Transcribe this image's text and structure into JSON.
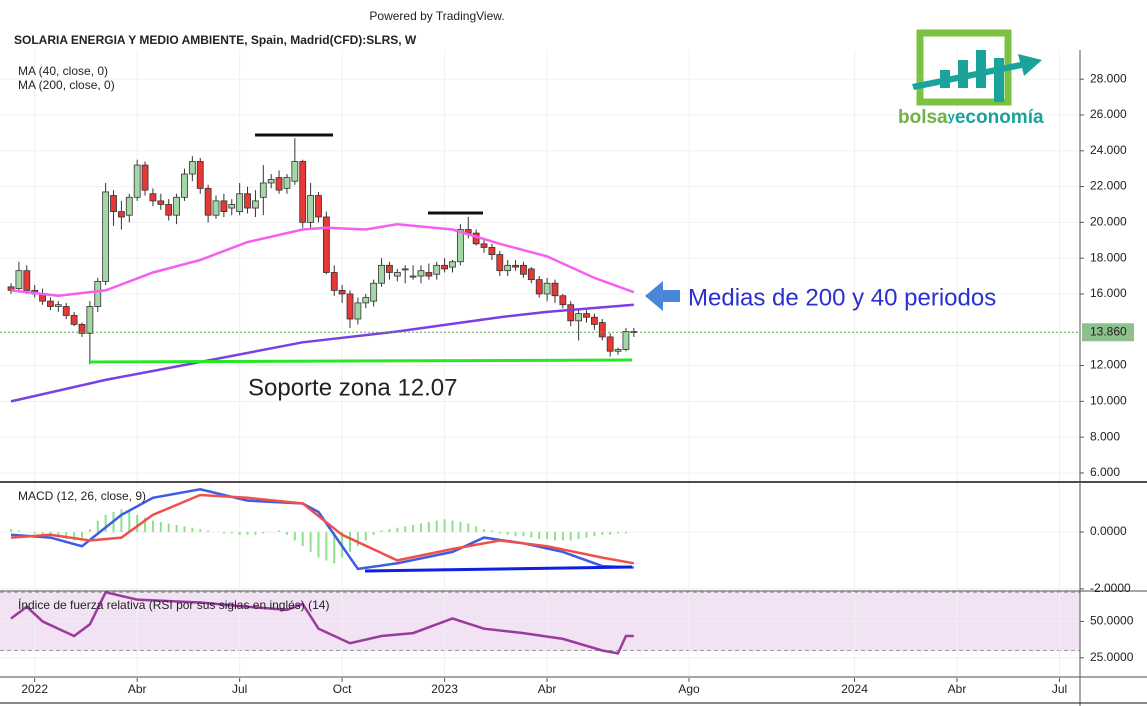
{
  "header": {
    "powered_by": "Powered by TradingView.",
    "title": "SOLARIA ENERGIA Y MEDIO AMBIENTE, Spain, Madrid(CFD):SLRS, W"
  },
  "logo": {
    "part1": "bolsa",
    "part2": "y",
    "part3": "economía"
  },
  "chart_data": [
    {
      "type": "candlestick",
      "xlim": [
        -1.4,
        135.6
      ],
      "xticks": [
        {
          "value": 3,
          "label": "2022"
        },
        {
          "value": 16,
          "label": "Abr"
        },
        {
          "value": 29,
          "label": "Jul"
        },
        {
          "value": 42,
          "label": "Oct"
        },
        {
          "value": 55,
          "label": "2023"
        },
        {
          "value": 68,
          "label": "Abr"
        },
        {
          "value": 86,
          "label": "Ago"
        },
        {
          "value": 107,
          "label": "2024"
        },
        {
          "value": 120,
          "label": "Abr"
        },
        {
          "value": 133,
          "label": "Jul"
        }
      ],
      "ylim": [
        5.55,
        29.63
      ],
      "yticks": [
        {
          "value": 6,
          "label": "6.000"
        },
        {
          "value": 8,
          "label": "8.000"
        },
        {
          "value": 10,
          "label": "10.000"
        },
        {
          "value": 12,
          "label": "12.000"
        },
        {
          "value": 16,
          "label": "16.000"
        },
        {
          "value": 18,
          "label": "18.000"
        },
        {
          "value": 20,
          "label": "20.000"
        },
        {
          "value": 22,
          "label": "22.000"
        },
        {
          "value": 24,
          "label": "24.000"
        },
        {
          "value": 26,
          "label": "26.000"
        },
        {
          "value": 28,
          "label": "28.000"
        }
      ],
      "grid": true,
      "up_color": "#a5d6a7",
      "down_color": "#e53935",
      "open": [
        16.4,
        16.3,
        17.3,
        16.2,
        16.0,
        15.6,
        15.3,
        15.3,
        14.8,
        14.3,
        13.8,
        15.3,
        16.7,
        21.5,
        20.6,
        20.4,
        21.4,
        23.2,
        21.6,
        21.2,
        21.0,
        20.4,
        21.4,
        22.7,
        23.4,
        21.9,
        20.4,
        21.2,
        20.8,
        20.6,
        21.6,
        20.8,
        21.4,
        22.2,
        22.5,
        21.9,
        22.3,
        23.4,
        20.0,
        21.5,
        20.3,
        17.2,
        16.2,
        16.0,
        14.6,
        15.5,
        15.6,
        16.6,
        17.6,
        17.0,
        17.4,
        17.0,
        17.0,
        17.2,
        17.1,
        17.6,
        17.5,
        17.8,
        19.6,
        19.4,
        18.8,
        18.6,
        18.2,
        17.3,
        17.6,
        17.6,
        17.4,
        16.8,
        16.0,
        16.6,
        15.9,
        15.4,
        14.5,
        14.9,
        14.7,
        14.4,
        13.6,
        12.8,
        12.9,
        13.9
      ],
      "high": [
        16.6,
        17.8,
        17.6,
        16.5,
        16.3,
        15.8,
        15.6,
        15.5,
        15.0,
        14.4,
        15.6,
        16.9,
        22.2,
        21.8,
        21.2,
        21.6,
        23.5,
        23.4,
        21.9,
        21.6,
        21.3,
        21.6,
        23.0,
        23.7,
        23.6,
        22.1,
        21.5,
        21.6,
        21.3,
        22.2,
        22.0,
        21.8,
        23.2,
        22.7,
        22.9,
        22.7,
        24.7,
        23.5,
        22.2,
        21.7,
        20.6,
        17.6,
        16.5,
        16.2,
        15.8,
        16.0,
        16.8,
        18.0,
        17.8,
        17.4,
        17.6,
        17.6,
        17.6,
        17.7,
        17.8,
        18.0,
        17.9,
        19.9,
        20.3,
        19.6,
        19.0,
        18.8,
        18.4,
        17.9,
        17.9,
        17.8,
        17.5,
        17.0,
        16.9,
        16.8,
        16.0,
        15.6,
        15.1,
        15.1,
        14.9,
        14.6,
        13.8,
        13.0,
        14.1,
        14.1
      ],
      "low": [
        16.0,
        16.2,
        16.0,
        15.8,
        15.4,
        15.1,
        15.0,
        14.6,
        14.2,
        13.6,
        12.07,
        15.0,
        16.5,
        19.8,
        19.6,
        20.0,
        21.2,
        21.5,
        20.9,
        20.7,
        20.1,
        19.9,
        21.2,
        22.3,
        21.6,
        20.0,
        20.2,
        20.3,
        20.4,
        20.4,
        20.5,
        20.3,
        20.4,
        21.9,
        21.6,
        21.6,
        22.1,
        19.7,
        19.6,
        20.0,
        17.1,
        15.9,
        15.5,
        14.1,
        14.3,
        15.2,
        15.3,
        16.4,
        16.8,
        16.7,
        16.6,
        16.8,
        16.6,
        16.8,
        16.8,
        17.2,
        17.2,
        17.6,
        19.1,
        18.7,
        18.3,
        17.9,
        17.0,
        17.0,
        17.3,
        16.9,
        16.6,
        15.8,
        15.6,
        15.5,
        15.2,
        14.2,
        13.4,
        14.4,
        14.0,
        13.4,
        12.5,
        12.6,
        12.8,
        13.6
      ],
      "close": [
        16.2,
        17.3,
        16.2,
        16.0,
        15.6,
        15.3,
        15.4,
        14.8,
        14.3,
        13.8,
        15.3,
        16.7,
        21.7,
        20.6,
        20.3,
        21.4,
        23.2,
        21.8,
        21.2,
        21.0,
        20.4,
        21.4,
        22.7,
        23.4,
        21.9,
        20.4,
        21.2,
        20.6,
        21.0,
        21.6,
        20.8,
        21.2,
        22.2,
        22.4,
        21.8,
        22.5,
        23.4,
        20.0,
        21.5,
        20.3,
        17.2,
        16.2,
        16.0,
        14.6,
        15.5,
        15.8,
        16.6,
        17.6,
        17.2,
        17.2,
        17.4,
        17.0,
        17.3,
        17.0,
        17.6,
        17.4,
        17.8,
        19.6,
        19.4,
        18.8,
        18.6,
        18.2,
        17.3,
        17.6,
        17.5,
        17.1,
        16.8,
        16.0,
        16.6,
        15.9,
        15.4,
        14.5,
        14.9,
        14.7,
        14.3,
        13.6,
        12.8,
        12.9,
        13.9,
        13.86
      ],
      "series": [
        {
          "name": "MA (40, close, 0)",
          "color": "#f45ff0",
          "x": [
            0,
            6,
            12,
            18,
            24,
            30,
            37,
            40,
            45,
            49,
            56,
            62,
            68,
            74,
            79
          ],
          "values": [
            16.2,
            15.9,
            16.2,
            17.2,
            17.9,
            18.9,
            19.6,
            19.7,
            19.6,
            19.9,
            19.6,
            18.8,
            18.1,
            16.9,
            16.1
          ]
        },
        {
          "name": "MA (200, close, 0)",
          "color": "#7b3fe4",
          "x": [
            0,
            12,
            24,
            37,
            49,
            62,
            68,
            79
          ],
          "values": [
            10.0,
            11.2,
            12.2,
            13.3,
            13.9,
            14.7,
            15.0,
            15.4
          ]
        }
      ],
      "last_value": {
        "value": 13.86,
        "label": "13.860"
      },
      "annotations": [
        "Soporte zona 12.07",
        "Medias de 200 y 40 periodos"
      ]
    },
    {
      "type": "macd",
      "title": "MACD (12, 26, close, 9)",
      "ylim": [
        -2.04,
        1.72
      ],
      "yticks": [
        {
          "value": 0,
          "label": "0.0000"
        },
        {
          "value": -2,
          "label": "-2.0000"
        }
      ],
      "histogram_color": "#8fe08a",
      "histogram": [
        0.1,
        0.05,
        0,
        -0.05,
        -0.1,
        -0.15,
        -0.2,
        -0.25,
        -0.3,
        -0.2,
        0.1,
        0.4,
        0.6,
        0.7,
        0.8,
        0.75,
        0.6,
        0.5,
        0.4,
        0.35,
        0.3,
        0.25,
        0.2,
        0.15,
        0.1,
        0.05,
        0,
        -0.05,
        -0.05,
        -0.1,
        -0.1,
        -0.1,
        -0.05,
        0,
        0.05,
        -0.1,
        -0.3,
        -0.5,
        -0.7,
        -0.9,
        -1.0,
        -1.1,
        -0.9,
        -0.7,
        -0.5,
        -0.3,
        -0.1,
        0.05,
        0.1,
        0.15,
        0.2,
        0.25,
        0.3,
        0.35,
        0.4,
        0.45,
        0.4,
        0.35,
        0.3,
        0.2,
        0.1,
        0.05,
        -0.05,
        -0.1,
        -0.15,
        -0.15,
        -0.2,
        -0.25,
        -0.25,
        -0.3,
        -0.3,
        -0.3,
        -0.25,
        -0.2,
        -0.15,
        -0.1,
        -0.1,
        -0.05,
        -0.05,
        0
      ],
      "series": [
        {
          "color": "#3d5ce6",
          "x": [
            0,
            5,
            9,
            14,
            18,
            24,
            30,
            37,
            39,
            44,
            49,
            56,
            60,
            65,
            70,
            75,
            79
          ],
          "values": [
            -0.1,
            -0.2,
            -0.5,
            0.6,
            1.2,
            1.5,
            1.1,
            1.0,
            0.7,
            -1.3,
            -1.1,
            -0.7,
            -0.2,
            -0.4,
            -0.7,
            -1.2,
            -1.25
          ]
        },
        {
          "color": "#f0504a",
          "x": [
            0,
            5,
            10,
            14,
            18,
            24,
            30,
            37,
            42,
            49,
            56,
            62,
            68,
            75,
            79
          ],
          "values": [
            -0.2,
            -0.1,
            -0.3,
            -0.2,
            0.6,
            1.3,
            1.2,
            1.0,
            -0.1,
            -1.0,
            -0.6,
            -0.3,
            -0.5,
            -0.9,
            -1.1
          ]
        }
      ]
    },
    {
      "type": "line",
      "title": "Índice de fuerza relativa (RSI por sus siglas en inglés) (14)",
      "ylim": [
        12.5,
        70.2
      ],
      "yticks": [
        {
          "value": 50,
          "label": "50.0000"
        },
        {
          "value": 25,
          "label": "25.0000"
        }
      ],
      "band": [
        30,
        70
      ],
      "band_color": "#f1e3f3",
      "series": [
        {
          "color": "#9c3a9c",
          "x": [
            0,
            2,
            4,
            6,
            8,
            10,
            12,
            16,
            24,
            30,
            35,
            37,
            39,
            43,
            47,
            51,
            56,
            60,
            65,
            70,
            75,
            77,
            78,
            79
          ],
          "values": [
            52,
            60,
            50,
            45,
            40,
            48,
            70,
            65,
            63,
            60,
            58,
            62,
            45,
            35,
            40,
            42,
            52,
            45,
            42,
            38,
            30,
            28,
            40,
            40
          ]
        }
      ]
    }
  ]
}
